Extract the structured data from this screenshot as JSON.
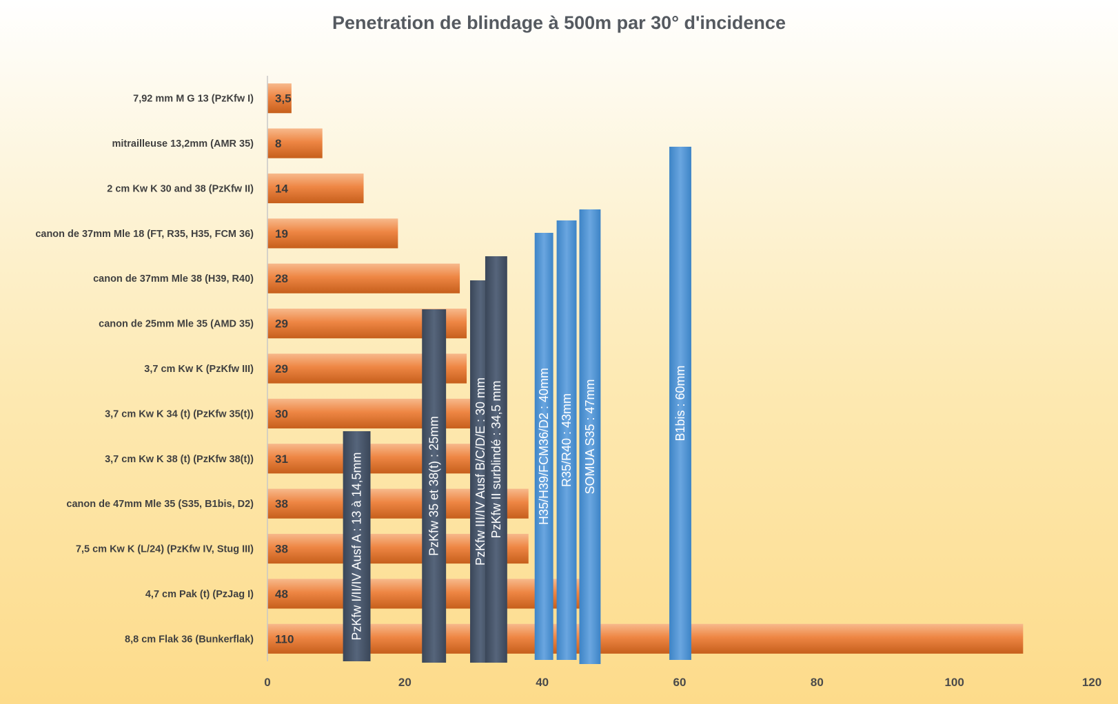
{
  "chart_data": {
    "type": "bar",
    "orientation": "horizontal",
    "title": "Penetration de blindage à 500m par 30° d'incidence",
    "xlim": [
      0,
      120
    ],
    "xticks": [
      "0",
      "20",
      "40",
      "60",
      "80",
      "100",
      "120"
    ],
    "categories": [
      "7,92 mm M G 13 (PzKfw I)",
      "mitrailleuse 13,2mm (AMR 35)",
      "2 cm Kw K 30 and 38 (PzKfw II)",
      "canon de 37mm Mle 18 (FT, R35, H35, FCM 36)",
      "canon de 37mm Mle 38 (H39, R40)",
      "canon de 25mm Mle 35 (AMD 35)",
      "3,7 cm Kw K (PzKfw III)",
      "3,7 cm Kw K 34 (t) (PzKfw 35(t))",
      "3,7 cm Kw K 38 (t) (PzKfw 38(t))",
      "canon de 47mm Mle 35 (S35, B1bis, D2)",
      "7,5 cm Kw K (L/24) (PzKfw IV, Stug III)",
      "4,7 cm Pak (t) (PzJag I)",
      "8,8 cm Flak 36 (Bunkerflak)"
    ],
    "values": [
      3.5,
      8,
      14,
      19,
      28,
      29,
      29,
      30,
      31,
      38,
      38,
      48,
      110
    ],
    "value_labels": [
      "3,5",
      "8",
      "14",
      "19",
      "28",
      "29",
      "29",
      "30",
      "31",
      "38",
      "38",
      "48",
      "110"
    ],
    "bar_color": "#ed7d31",
    "grid": false,
    "armor_overlays": [
      {
        "label": "PzKfw I/II/IV Ausf A : 13 à 14,5mm",
        "x_from": 11,
        "x_to": 15,
        "color": "#44546a"
      },
      {
        "label": "PzKfw 35 et 38(t) : 25mm",
        "x_from": 22.5,
        "x_to": 26,
        "color": "#44546a"
      },
      {
        "label": "PzKfw  III/IV Ausf B/C/D/E : 30 mm",
        "x_from": 29.5,
        "x_to": 32.5,
        "color": "#44546a"
      },
      {
        "label": "PzKfw II surblindé : 34,5 mm",
        "x_from": 31.7,
        "x_to": 34.9,
        "color": "#44546a"
      },
      {
        "label": "H35/H39/FCM36/D2 : 40mm",
        "x_from": 38.9,
        "x_to": 41.6,
        "color": "#4a8fd0"
      },
      {
        "label": "R35/R40 : 43mm",
        "x_from": 42.1,
        "x_to": 45.0,
        "color": "#4a8fd0"
      },
      {
        "label": "SOMUA S35 : 47mm",
        "x_from": 45.4,
        "x_to": 48.5,
        "color": "#4a8fd0"
      },
      {
        "label": "B1bis : 60mm",
        "x_from": 58.5,
        "x_to": 61.7,
        "color": "#4a8fd0"
      }
    ]
  }
}
